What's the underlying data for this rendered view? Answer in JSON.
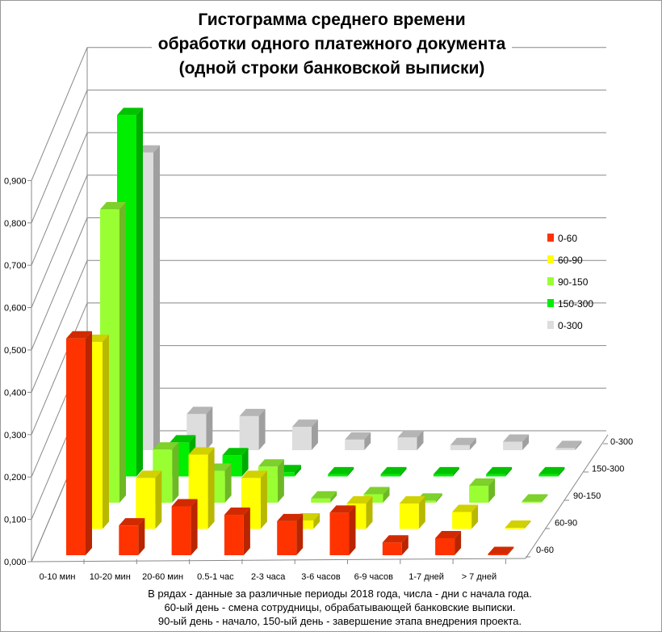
{
  "chart_data": {
    "type": "bar",
    "subtype": "3d-column",
    "title_lines": [
      "Гистограмма среднего времени",
      "обработки одного платежного документа",
      "(одной строки банковской выписки)"
    ],
    "categories": [
      "0-10 мин",
      "10-20 мин",
      "20-60 мин",
      "0.5-1 час",
      "2-3 часа",
      "3-6 часов",
      "6-9 часов",
      "1-7 дней",
      "> 7 дней"
    ],
    "y_ticks": [
      "0,000",
      "0,100",
      "0,200",
      "0,300",
      "0,400",
      "0,500",
      "0,600",
      "0,700",
      "0,800",
      "0,900"
    ],
    "ylim": [
      0,
      0.9
    ],
    "grid": true,
    "legend_position": "right",
    "series": [
      {
        "name": "0-60",
        "color": "#ff3300",
        "values": [
          0.51,
          0.07,
          0.115,
          0.095,
          0.08,
          0.1,
          0.03,
          0.04,
          0.0
        ]
      },
      {
        "name": "60-90",
        "color": "#ffff00",
        "values": [
          0.44,
          0.12,
          0.175,
          0.12,
          0.02,
          0.06,
          0.06,
          0.04,
          0.0
        ]
      },
      {
        "name": "90-150",
        "color": "#99ff33",
        "values": [
          0.69,
          0.125,
          0.075,
          0.085,
          0.01,
          0.02,
          0.005,
          0.04,
          0.0
        ]
      },
      {
        "name": "150-300",
        "color": "#00ee00",
        "values": [
          0.85,
          0.08,
          0.05,
          0.01,
          0.005,
          0.005,
          0.005,
          0.005,
          0.005
        ]
      },
      {
        "name": "0-300",
        "color": "#dddddd",
        "values": [
          0.7,
          0.085,
          0.08,
          0.055,
          0.025,
          0.03,
          0.012,
          0.02,
          0.005
        ]
      }
    ],
    "notes": [
      "В рядах - данные за различные периоды 2018 года, числа - дни с начала года.",
      "60-ый день - смена сотрудницы, обрабатывающей банковские выписки.",
      "90-ый день - начало, 150-ый день - завершение этапа внедрения проекта."
    ]
  }
}
